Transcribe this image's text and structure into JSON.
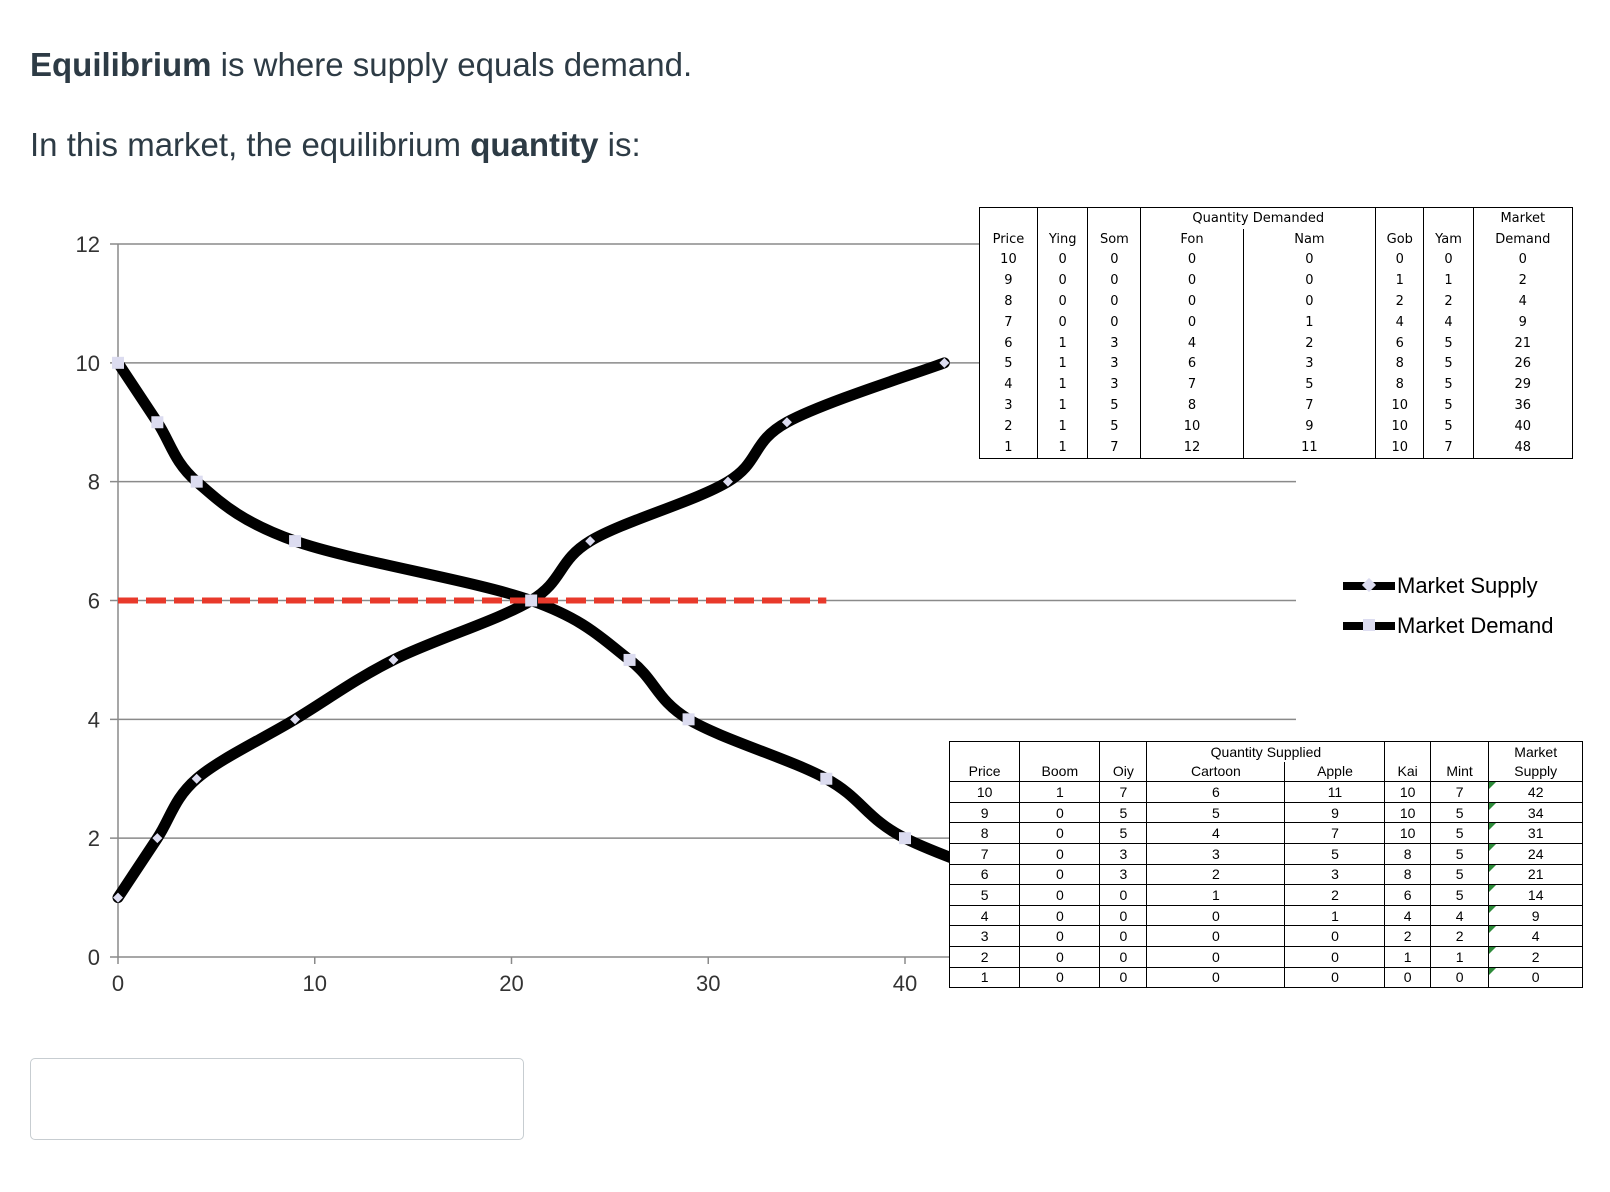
{
  "question": {
    "line1_bold": "Equilibrium",
    "line1_rest": " is where supply equals demand.",
    "line2_pre": "In this market, the equilibrium ",
    "line2_bold": "quantity",
    "line2_post": " is:"
  },
  "answer": {
    "value": ""
  },
  "chart_data": {
    "type": "line",
    "title": "",
    "xlabel": "",
    "ylabel": "",
    "xlim": [
      0,
      40
    ],
    "ylim": [
      0,
      12
    ],
    "x_ticks": [
      0,
      10,
      20,
      30,
      40
    ],
    "y_ticks": [
      0,
      2,
      4,
      6,
      8,
      10,
      12
    ],
    "grid": "horizontal",
    "legend_position": "right",
    "colors": {
      "series": "#000000",
      "marker": "#dcdcf0",
      "equilibrium_line": "#e8392b"
    },
    "series": [
      {
        "name": "Market Supply",
        "marker": "diamond",
        "points": [
          [
            0,
            1
          ],
          [
            2,
            2
          ],
          [
            4,
            3
          ],
          [
            9,
            4
          ],
          [
            14,
            5
          ],
          [
            21,
            6
          ],
          [
            24,
            7
          ],
          [
            31,
            8
          ],
          [
            34,
            9
          ],
          [
            42,
            10
          ]
        ]
      },
      {
        "name": "Market Demand",
        "marker": "square",
        "points": [
          [
            0,
            10
          ],
          [
            2,
            9
          ],
          [
            4,
            8
          ],
          [
            9,
            7
          ],
          [
            21,
            6
          ],
          [
            26,
            5
          ],
          [
            29,
            4
          ],
          [
            36,
            3
          ],
          [
            40,
            2
          ],
          [
            48,
            1
          ]
        ]
      }
    ],
    "equilibrium_line": {
      "y": 6,
      "x_start": 0,
      "x_end": 36
    }
  },
  "demand_table": {
    "group_header": "Quantity Demanded",
    "price_header": "Price",
    "market_header_top": "Market",
    "market_header_bottom": "Demand",
    "columns": [
      "Ying",
      "Som",
      "Fon",
      "Nam",
      "Gob",
      "Yam"
    ],
    "rows": [
      {
        "price": "10",
        "values": [
          "0",
          "0",
          "0",
          "0",
          "0",
          "0"
        ],
        "market": "0"
      },
      {
        "price": "9",
        "values": [
          "0",
          "0",
          "0",
          "0",
          "1",
          "1"
        ],
        "market": "2"
      },
      {
        "price": "8",
        "values": [
          "0",
          "0",
          "0",
          "0",
          "2",
          "2"
        ],
        "market": "4"
      },
      {
        "price": "7",
        "values": [
          "0",
          "0",
          "0",
          "1",
          "4",
          "4"
        ],
        "market": "9"
      },
      {
        "price": "6",
        "values": [
          "1",
          "3",
          "4",
          "2",
          "6",
          "5"
        ],
        "market": "21"
      },
      {
        "price": "5",
        "values": [
          "1",
          "3",
          "6",
          "3",
          "8",
          "5"
        ],
        "market": "26"
      },
      {
        "price": "4",
        "values": [
          "1",
          "3",
          "7",
          "5",
          "8",
          "5"
        ],
        "market": "29"
      },
      {
        "price": "3",
        "values": [
          "1",
          "5",
          "8",
          "7",
          "10",
          "5"
        ],
        "market": "36"
      },
      {
        "price": "2",
        "values": [
          "1",
          "5",
          "10",
          "9",
          "10",
          "5"
        ],
        "market": "40"
      },
      {
        "price": "1",
        "values": [
          "1",
          "7",
          "12",
          "11",
          "10",
          "7"
        ],
        "market": "48"
      }
    ]
  },
  "supply_table": {
    "group_header": "Quantity Supplied",
    "price_header": "Price",
    "market_header_top": "Market",
    "market_header_bottom": "Supply",
    "columns": [
      "Boom",
      "Oiy",
      "Cartoon",
      "Apple",
      "Kai",
      "Mint"
    ],
    "rows": [
      {
        "price": "10",
        "values": [
          "1",
          "7",
          "6",
          "11",
          "10",
          "7"
        ],
        "market": "42"
      },
      {
        "price": "9",
        "values": [
          "0",
          "5",
          "5",
          "9",
          "10",
          "5"
        ],
        "market": "34"
      },
      {
        "price": "8",
        "values": [
          "0",
          "5",
          "4",
          "7",
          "10",
          "5"
        ],
        "market": "31"
      },
      {
        "price": "7",
        "values": [
          "0",
          "3",
          "3",
          "5",
          "8",
          "5"
        ],
        "market": "24"
      },
      {
        "price": "6",
        "values": [
          "0",
          "3",
          "2",
          "3",
          "8",
          "5"
        ],
        "market": "21"
      },
      {
        "price": "5",
        "values": [
          "0",
          "0",
          "1",
          "2",
          "6",
          "5"
        ],
        "market": "14"
      },
      {
        "price": "4",
        "values": [
          "0",
          "0",
          "0",
          "1",
          "4",
          "4"
        ],
        "market": "9"
      },
      {
        "price": "3",
        "values": [
          "0",
          "0",
          "0",
          "0",
          "2",
          "2"
        ],
        "market": "4"
      },
      {
        "price": "2",
        "values": [
          "0",
          "0",
          "0",
          "0",
          "1",
          "1"
        ],
        "market": "2"
      },
      {
        "price": "1",
        "values": [
          "0",
          "0",
          "0",
          "0",
          "0",
          "0"
        ],
        "market": "0"
      }
    ]
  }
}
